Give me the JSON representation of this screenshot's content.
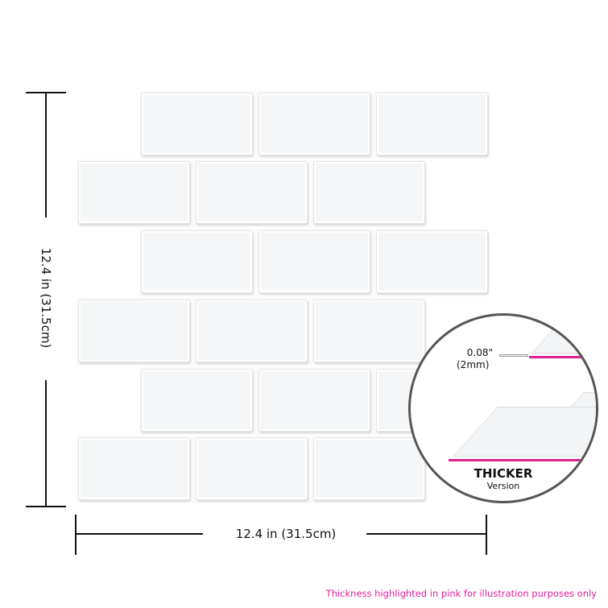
{
  "dimensions": {
    "height_label": "12.4 in (31.5cm)",
    "width_label": "12.4 in (31.5cm)"
  },
  "inset": {
    "thickness_in": "0.08\"",
    "thickness_mm": "(2mm)",
    "title": "THICKER",
    "subtitle": "Version"
  },
  "footer_note": "Thickness highlighted in pink for illustration purposes only",
  "colors": {
    "highlight": "#e01e8f",
    "tile": "#f5f6f7",
    "outline": "#555555"
  }
}
